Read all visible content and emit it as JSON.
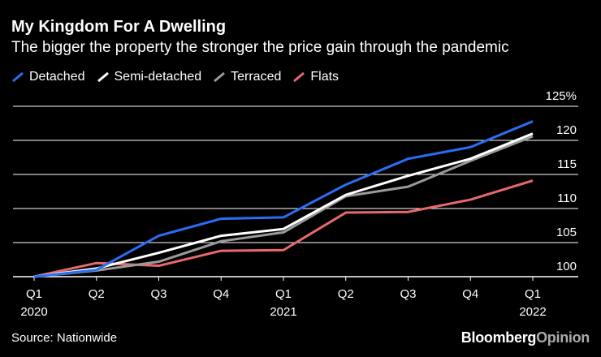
{
  "title": "My Kingdom For A Dwelling",
  "subtitle": "The bigger the property the stronger the price gain through the pandemic",
  "source": "Source: Nationwide",
  "brand": {
    "part1": "Bloomberg",
    "part2": "Opinion"
  },
  "chart_data": {
    "type": "line",
    "categories": [
      "Q1",
      "Q2",
      "Q3",
      "Q4",
      "Q1",
      "Q2",
      "Q3",
      "Q4",
      "Q1"
    ],
    "year_labels": [
      "2020",
      "",
      "",
      "",
      "2021",
      "",
      "",
      "",
      "2022"
    ],
    "ylim": [
      100,
      125
    ],
    "yticks": [
      100,
      105,
      110,
      115,
      120,
      125
    ],
    "ytick_labels": [
      "100",
      "105",
      "110",
      "115",
      "120",
      "125%"
    ],
    "series": [
      {
        "name": "Detached",
        "color": "#2a6ef5",
        "values": [
          100,
          101,
          106,
          108.5,
          108.7,
          113.5,
          117.3,
          119,
          122.8
        ]
      },
      {
        "name": "Semi-detached",
        "color": "#ffffff",
        "values": [
          100,
          101.2,
          103.5,
          106,
          107,
          112,
          114.8,
          117.3,
          121
        ]
      },
      {
        "name": "Terraced",
        "color": "#9a9a9a",
        "values": [
          100,
          100.9,
          102.2,
          105.2,
          106.5,
          111.8,
          113.2,
          117,
          120.6
        ]
      },
      {
        "name": "Flats",
        "color": "#e8696c",
        "values": [
          100,
          102,
          101.6,
          103.8,
          103.9,
          109.4,
          109.5,
          111.3,
          114.1
        ]
      }
    ]
  }
}
